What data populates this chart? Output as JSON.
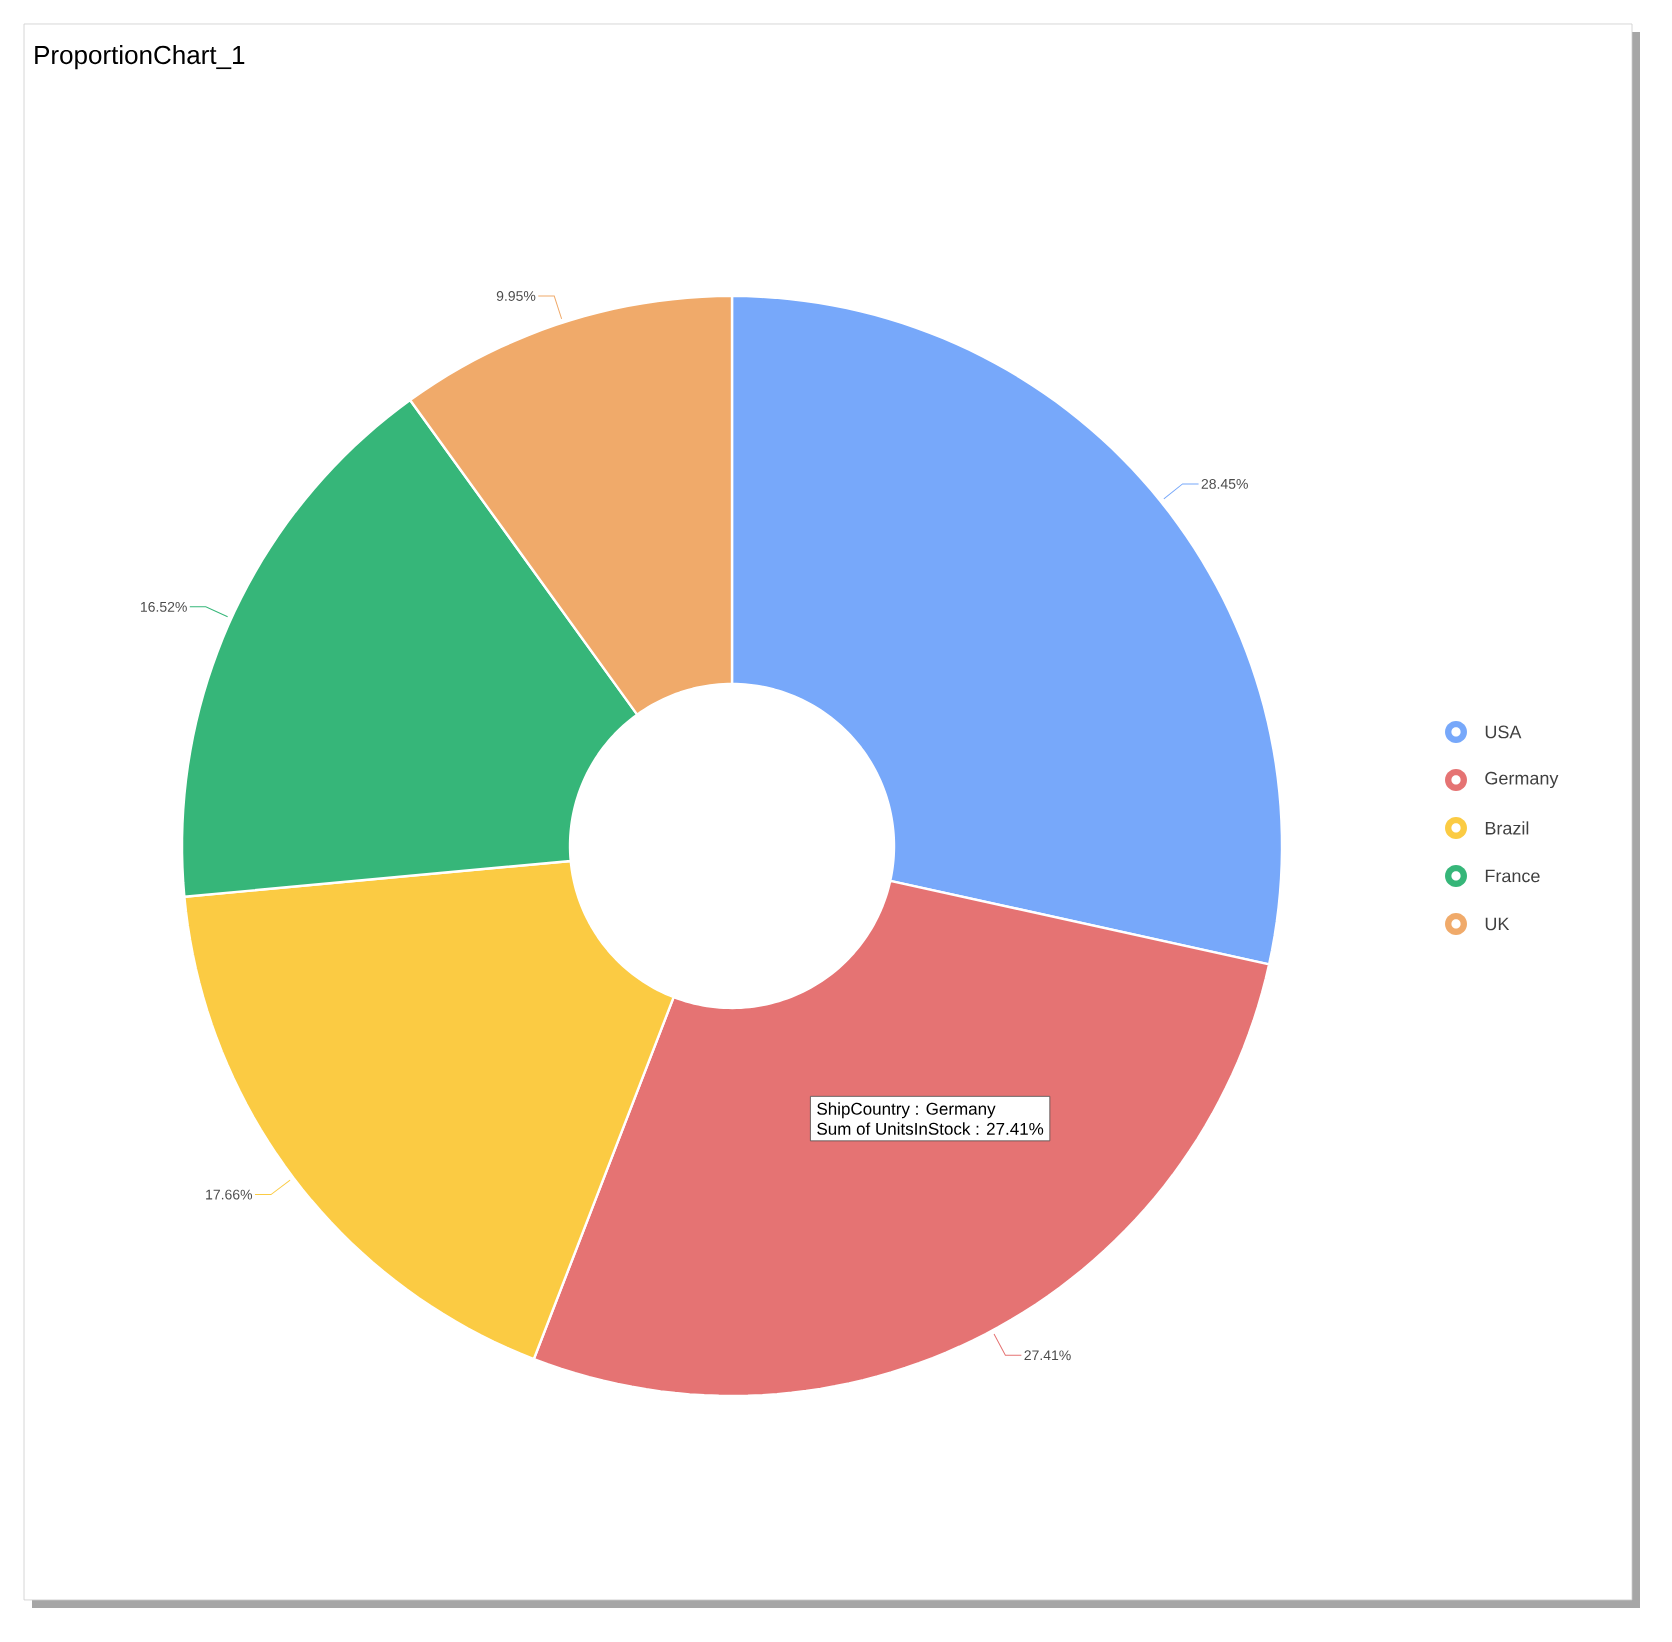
{
  "chart_data": {
    "type": "donut",
    "title": "ProportionChart_1",
    "categories": [
      "USA",
      "Germany",
      "Brazil",
      "France",
      "UK"
    ],
    "values": [
      28.45,
      27.41,
      17.66,
      16.52,
      9.95
    ],
    "colors": [
      "#77a8fa",
      "#e57373",
      "#fbcb43",
      "#36b679",
      "#f0aa6a"
    ],
    "value_labels": [
      "28.45%",
      "27.41%",
      "17.66%",
      "16.52%",
      "9.95%"
    ],
    "legend": "right",
    "annotations": [
      "ShipCountry : Germany",
      "Sum of UnitsInStock : 27.41%"
    ]
  }
}
